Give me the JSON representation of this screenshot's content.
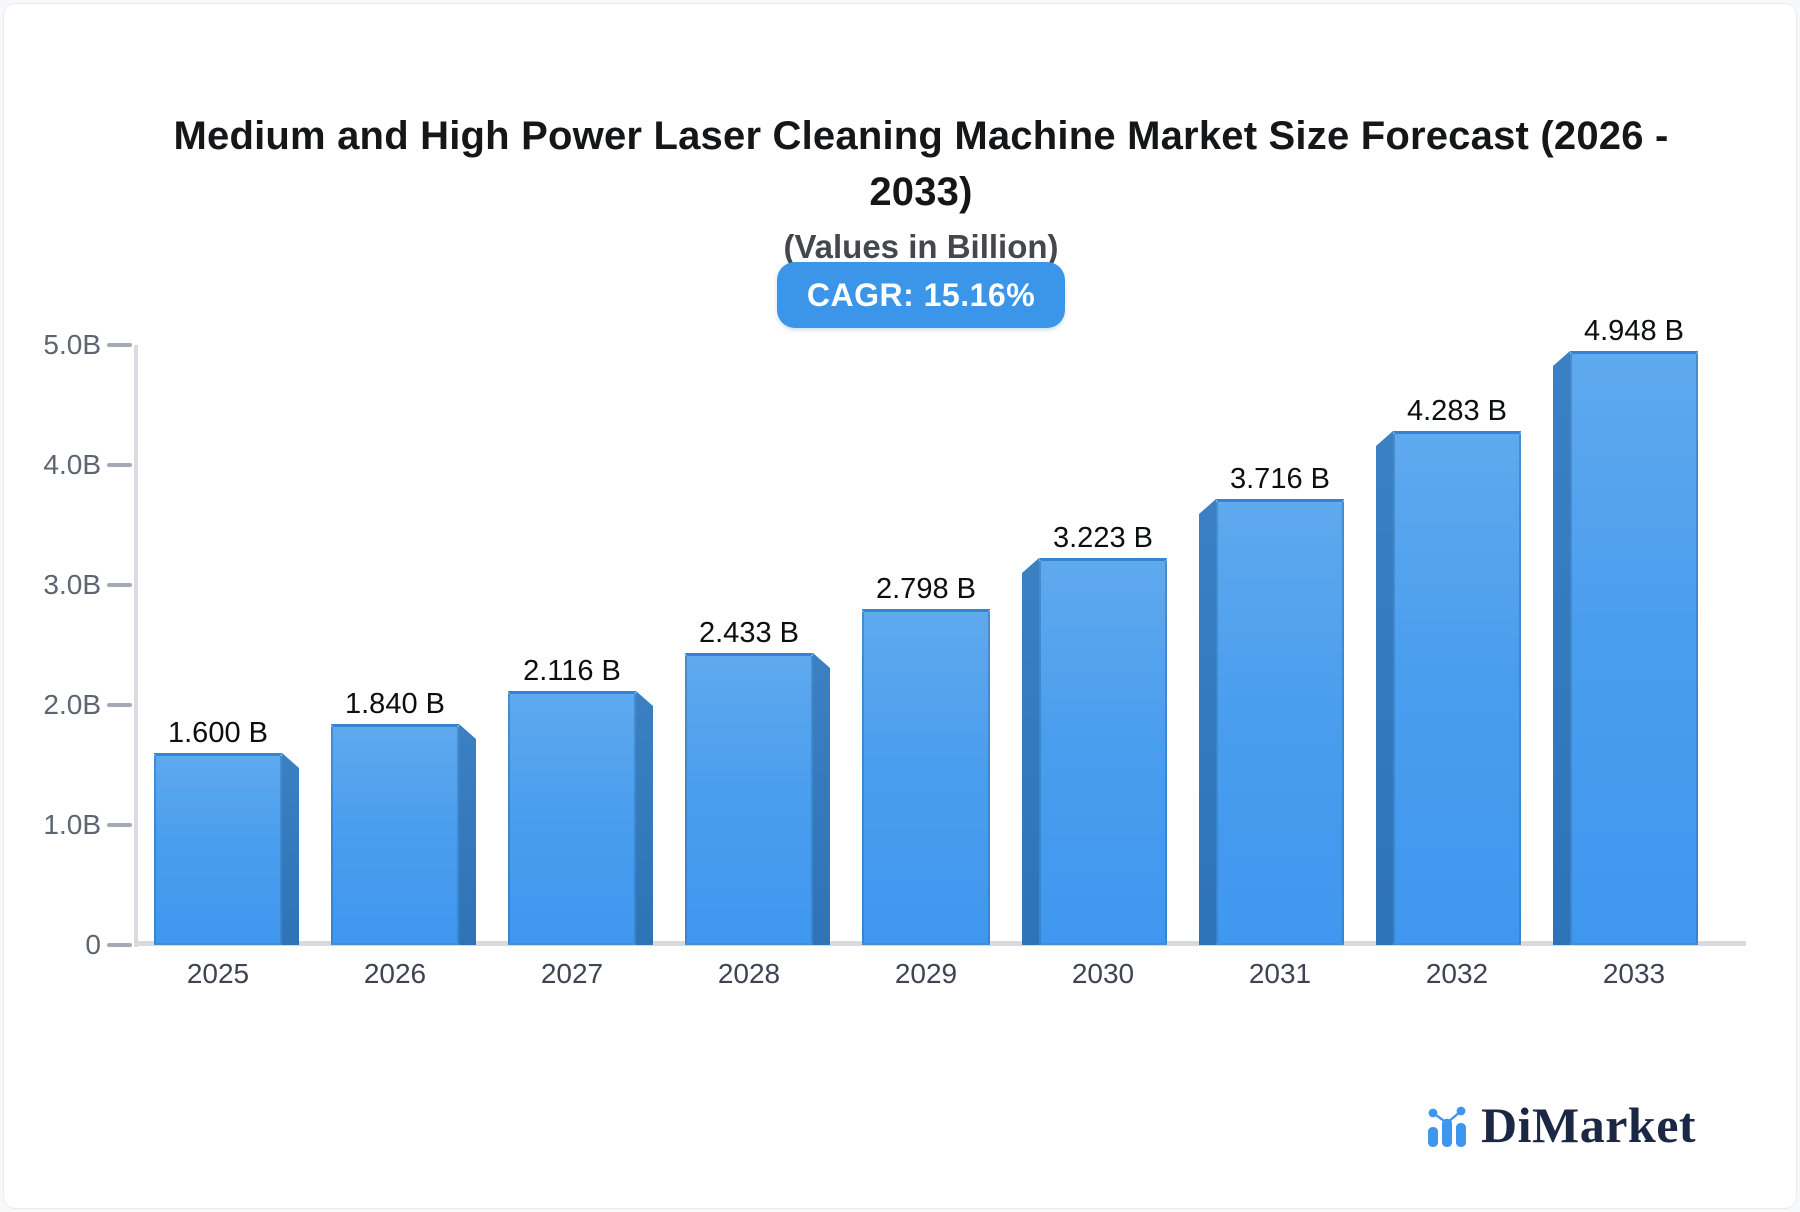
{
  "header": {
    "title": "Medium and High Power Laser Cleaning Machine Market Size Forecast (2026 -\n2033)",
    "subtitle": "(Values in Billion)",
    "cagr_badge": "CAGR: 15.16%"
  },
  "chart_data": {
    "type": "bar",
    "title": "Medium and High Power Laser Cleaning Machine Market Size Forecast (2026 - 2033)",
    "subtitle": "(Values in Billion)",
    "cagr_percent": 15.16,
    "categories": [
      "2025",
      "2026",
      "2027",
      "2028",
      "2029",
      "2030",
      "2031",
      "2032",
      "2033"
    ],
    "values": [
      1.6,
      1.84,
      2.116,
      2.433,
      2.798,
      3.223,
      3.716,
      4.283,
      4.948
    ],
    "bar_labels": [
      "1.600 B",
      "1.840 B",
      "2.116 B",
      "2.433 B",
      "2.798 B",
      "3.223 B",
      "3.716 B",
      "4.283 B",
      "4.948 B"
    ],
    "unit": "Billion",
    "ylim": [
      0,
      5
    ],
    "yticks": [
      {
        "value": 5,
        "label": "5.0B"
      },
      {
        "value": 4,
        "label": "4.0B"
      },
      {
        "value": 3,
        "label": "3.0B"
      },
      {
        "value": 2,
        "label": "2.0B"
      },
      {
        "value": 1,
        "label": "1.0B"
      },
      {
        "value": 0,
        "label": "0"
      }
    ],
    "grid": false,
    "legend": false,
    "colors": {
      "bar_fill_top": "#5fa9ee",
      "bar_fill_bottom": "#3f97ef",
      "bar_side": "#2f74b6",
      "bar_top_edge": "#3583d2",
      "badge_blue": "#3b96ea",
      "axis_line": "#dadce1",
      "axis_text": "#5d6571"
    }
  },
  "brand": {
    "name": "DiMarket",
    "icon": "mini-bar-line-chart-icon",
    "text_color": "#1a2745",
    "icon_color": "#3e97ee"
  }
}
